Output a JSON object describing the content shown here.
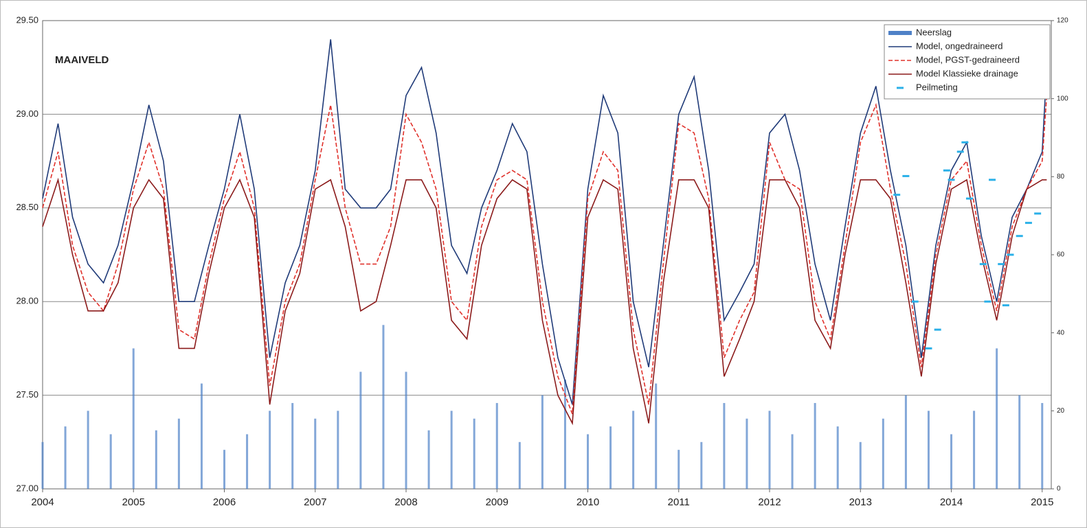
{
  "chart_data": {
    "type": "line",
    "annotation": "MAAIVELD",
    "xlim": [
      2004,
      2015.1
    ],
    "xticks": [
      2004,
      2005,
      2006,
      2007,
      2008,
      2009,
      2010,
      2011,
      2012,
      2013,
      2014,
      2015
    ],
    "ylim": [
      27,
      29.5
    ],
    "yticks": [
      {
        "value": 27,
        "label": "27.00"
      },
      {
        "value": 27.5,
        "label": "27.50"
      },
      {
        "value": 28,
        "label": "28.00"
      },
      {
        "value": 28.5,
        "label": "28.50"
      },
      {
        "value": 29,
        "label": "29.00"
      },
      {
        "value": 29.5,
        "label": "29.50"
      }
    ],
    "y2lim": [
      0,
      120
    ],
    "y2ticks": [
      0,
      20,
      40,
      60,
      80,
      100,
      120
    ],
    "grid": true,
    "legend": "top-right",
    "x": [
      2004,
      2004.17,
      2004.33,
      2004.5,
      2004.67,
      2004.83,
      2005,
      2005.17,
      2005.33,
      2005.5,
      2005.67,
      2005.83,
      2006,
      2006.17,
      2006.33,
      2006.5,
      2006.67,
      2006.83,
      2007,
      2007.17,
      2007.33,
      2007.5,
      2007.67,
      2007.83,
      2008,
      2008.17,
      2008.33,
      2008.5,
      2008.67,
      2008.83,
      2009,
      2009.17,
      2009.33,
      2009.5,
      2009.67,
      2009.83,
      2010,
      2010.17,
      2010.33,
      2010.5,
      2010.67,
      2010.83,
      2011,
      2011.17,
      2011.33,
      2011.5,
      2011.67,
      2011.83,
      2012,
      2012.17,
      2012.33,
      2012.5,
      2012.67,
      2012.83,
      2013,
      2013.17,
      2013.33,
      2013.5,
      2013.67,
      2013.83,
      2014,
      2014.17,
      2014.33,
      2014.5,
      2014.67,
      2014.83,
      2015,
      2015.05
    ],
    "series": [
      {
        "name": "Neerslag",
        "type": "bar",
        "axis": "y2",
        "color": "#4f81c7",
        "x": [
          2004,
          2004.25,
          2004.5,
          2004.75,
          2005,
          2005.25,
          2005.5,
          2005.75,
          2006,
          2006.25,
          2006.5,
          2006.75,
          2007,
          2007.25,
          2007.5,
          2007.75,
          2008,
          2008.25,
          2008.5,
          2008.75,
          2009,
          2009.25,
          2009.5,
          2009.75,
          2010,
          2010.25,
          2010.5,
          2010.75,
          2011,
          2011.25,
          2011.5,
          2011.75,
          2012,
          2012.25,
          2012.5,
          2012.75,
          2013,
          2013.25,
          2013.5,
          2013.75,
          2014,
          2014.25,
          2014.5,
          2014.75,
          2015
        ],
        "values": [
          12,
          16,
          20,
          14,
          36,
          15,
          18,
          27,
          10,
          14,
          20,
          22,
          18,
          20,
          30,
          42,
          30,
          15,
          20,
          18,
          22,
          12,
          24,
          28,
          14,
          16,
          20,
          27,
          10,
          12,
          22,
          18,
          20,
          14,
          22,
          16,
          12,
          18,
          24,
          20,
          14,
          20,
          36,
          24,
          22
        ]
      },
      {
        "name": "Model, ongedraineerd",
        "type": "line",
        "color": "#1f3a78",
        "values": [
          28.55,
          28.95,
          28.45,
          28.2,
          28.1,
          28.3,
          28.65,
          29.05,
          28.75,
          28.0,
          28.0,
          28.3,
          28.6,
          29.0,
          28.6,
          27.7,
          28.1,
          28.3,
          28.7,
          29.4,
          28.6,
          28.5,
          28.5,
          28.6,
          29.1,
          29.25,
          28.9,
          28.3,
          28.15,
          28.5,
          28.7,
          28.95,
          28.8,
          28.2,
          27.7,
          27.45,
          28.6,
          29.1,
          28.9,
          28.0,
          27.65,
          28.3,
          29.0,
          29.2,
          28.7,
          27.9,
          28.05,
          28.2,
          28.9,
          29.0,
          28.7,
          28.2,
          27.9,
          28.4,
          28.9,
          29.15,
          28.7,
          28.3,
          27.7,
          28.3,
          28.7,
          28.85,
          28.35,
          28.0,
          28.45,
          28.6,
          28.8,
          29.25
        ]
      },
      {
        "name": "Model, PGST-gedraineerd",
        "type": "line",
        "style": "dashed",
        "color": "#e0302a",
        "values": [
          28.5,
          28.8,
          28.3,
          28.05,
          27.95,
          28.2,
          28.6,
          28.85,
          28.6,
          27.85,
          27.8,
          28.2,
          28.55,
          28.8,
          28.5,
          27.55,
          28.0,
          28.2,
          28.65,
          29.05,
          28.5,
          28.2,
          28.2,
          28.4,
          29.0,
          28.85,
          28.6,
          28.0,
          27.9,
          28.4,
          28.65,
          28.7,
          28.65,
          28.0,
          27.6,
          27.4,
          28.55,
          28.8,
          28.7,
          27.85,
          27.45,
          28.2,
          28.95,
          28.9,
          28.55,
          27.7,
          27.9,
          28.05,
          28.85,
          28.65,
          28.6,
          28.0,
          27.8,
          28.3,
          28.85,
          29.05,
          28.6,
          28.2,
          27.65,
          28.25,
          28.65,
          28.75,
          28.3,
          27.95,
          28.4,
          28.6,
          28.75,
          29.1
        ]
      },
      {
        "name": "Model Klassieke drainage",
        "type": "line",
        "color": "#8b1a1a",
        "values": [
          28.4,
          28.65,
          28.25,
          27.95,
          27.95,
          28.1,
          28.5,
          28.65,
          28.55,
          27.75,
          27.75,
          28.15,
          28.5,
          28.65,
          28.45,
          27.45,
          27.95,
          28.15,
          28.6,
          28.65,
          28.4,
          27.95,
          28.0,
          28.3,
          28.65,
          28.65,
          28.5,
          27.9,
          27.8,
          28.3,
          28.55,
          28.65,
          28.6,
          27.9,
          27.5,
          27.35,
          28.45,
          28.65,
          28.6,
          27.75,
          27.35,
          28.1,
          28.65,
          28.65,
          28.5,
          27.6,
          27.8,
          28.0,
          28.65,
          28.65,
          28.5,
          27.9,
          27.75,
          28.25,
          28.65,
          28.65,
          28.55,
          28.1,
          27.6,
          28.2,
          28.6,
          28.65,
          28.25,
          27.9,
          28.35,
          28.6,
          28.65,
          28.65
        ]
      },
      {
        "name": "Peilmeting",
        "type": "scatter",
        "color": "#2ab0e8",
        "x": [
          2013.4,
          2013.5,
          2013.6,
          2013.75,
          2013.85,
          2013.95,
          2014.0,
          2014.1,
          2014.15,
          2014.2,
          2014.35,
          2014.4,
          2014.45,
          2014.55,
          2014.6,
          2014.65,
          2014.75,
          2014.85,
          2014.95,
          2015.05
        ],
        "values": [
          28.57,
          28.67,
          28.0,
          27.75,
          27.85,
          28.7,
          28.65,
          28.8,
          28.85,
          28.55,
          28.2,
          28.0,
          28.65,
          28.2,
          27.98,
          28.25,
          28.35,
          28.42,
          28.47,
          29.12
        ]
      }
    ]
  }
}
